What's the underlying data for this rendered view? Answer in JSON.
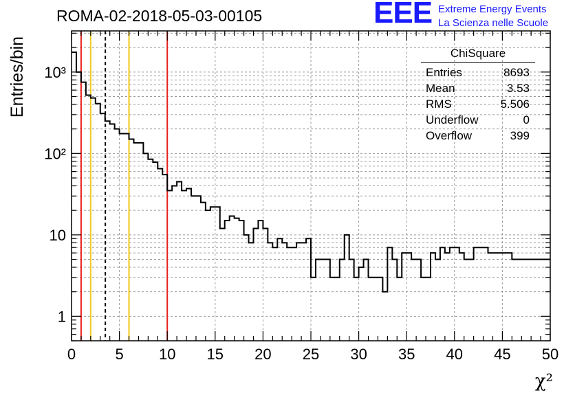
{
  "header": {
    "run_title": "ROMA-02-2018-05-03-00105",
    "logo_letters": "EEE",
    "logo_line1": "Extreme Energy Events",
    "logo_line2": "La Scienza nelle Scuole"
  },
  "stats_box": {
    "title": "ChiSquare",
    "rows": [
      {
        "label": "Entries",
        "value": "8693"
      },
      {
        "label": "Mean",
        "value": "3.53"
      },
      {
        "label": "RMS",
        "value": "5.506"
      },
      {
        "label": "Underflow",
        "value": "0"
      },
      {
        "label": "Overflow",
        "value": "399"
      }
    ]
  },
  "colors": {
    "histogram": "#000000",
    "red_lines": "#e8211d",
    "yellow_lines": "#f2c81b",
    "mean_line": "#000000",
    "grid": "#9a9a9a",
    "logo": "#1a1aff"
  },
  "chart_data": {
    "type": "histogram",
    "xlabel": "χ²",
    "ylabel": "Entries/bin",
    "xlim": [
      0,
      50
    ],
    "ylim": [
      0.5,
      3200
    ],
    "yscale": "log",
    "grid": true,
    "bin_width": 0.5,
    "x_ticks": [
      0,
      5,
      10,
      15,
      20,
      25,
      30,
      35,
      40,
      45,
      50
    ],
    "x_tick_labels": [
      "0",
      "5",
      "10",
      "15",
      "20",
      "25",
      "30",
      "35",
      "40",
      "45",
      "50"
    ],
    "y_ticks": [
      1,
      10,
      100,
      1000
    ],
    "y_tick_labels": [
      "1",
      "10",
      "10²",
      "10³"
    ],
    "counts": [
      1750,
      1000,
      750,
      520,
      480,
      410,
      310,
      250,
      230,
      200,
      175,
      175,
      150,
      135,
      135,
      100,
      85,
      78,
      65,
      55,
      35,
      40,
      45,
      35,
      37,
      30,
      30,
      25,
      20,
      22,
      22,
      12,
      15,
      17,
      16,
      15,
      10,
      8,
      12,
      15,
      12,
      8,
      7,
      9,
      8,
      7,
      7,
      8,
      8,
      9,
      3,
      5,
      5,
      5,
      3,
      3,
      5,
      10,
      5,
      3,
      4,
      5,
      3,
      3,
      3,
      2,
      7,
      5,
      3,
      6,
      6,
      5,
      5,
      3,
      3,
      6,
      5,
      7,
      6,
      7,
      7,
      6,
      5,
      5,
      7,
      7,
      7,
      6,
      6,
      6,
      6,
      6,
      5,
      5,
      5,
      5,
      5,
      5,
      5,
      5
    ],
    "counts_note": "",
    "vertical_lines": [
      {
        "x": 1,
        "style": "red"
      },
      {
        "x": 10,
        "style": "red"
      },
      {
        "x": 2,
        "style": "yellow"
      },
      {
        "x": 6,
        "style": "yellow"
      },
      {
        "x": 3.53,
        "style": "mean"
      }
    ]
  }
}
